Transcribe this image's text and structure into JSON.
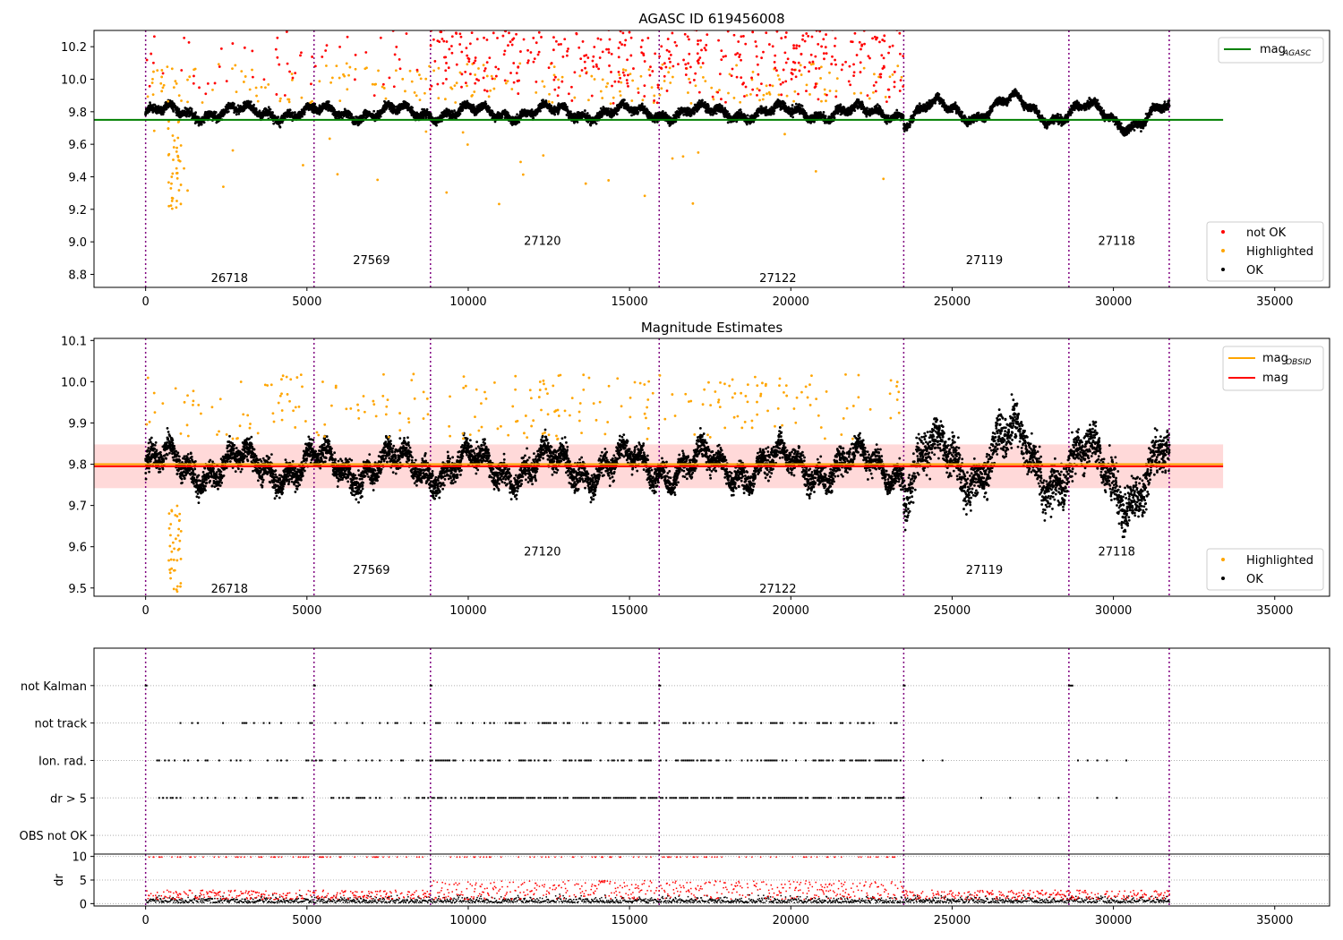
{
  "figure": {
    "width": 1500,
    "height": 1050
  },
  "colors": {
    "not_ok": "#ff0000",
    "highlighted": "#ffa500",
    "ok": "#000000",
    "mag_agasc": "#008000",
    "mag_obsid": "#ffa500",
    "mag": "#ff0000",
    "obsid_line": "#800080",
    "band": "#ffc0c0",
    "grid": "#b0b0b0"
  },
  "chart_data": [
    {
      "type": "scatter",
      "title": "AGASC ID 619456008",
      "xlim": [
        -1600,
        36700
      ],
      "ylim": [
        8.72,
        10.3
      ],
      "xticks": [
        0,
        5000,
        10000,
        15000,
        20000,
        25000,
        30000,
        35000
      ],
      "yticks": [
        8.8,
        9.0,
        9.2,
        9.4,
        9.6,
        9.8,
        10.0,
        10.2
      ],
      "ytick_format": 1,
      "mag_agasc": 9.75,
      "line_x": [
        -1600,
        33400
      ],
      "obsid_lines": [
        0,
        5220,
        8830,
        15920,
        23500,
        28620,
        31730
      ],
      "obsid_labels": [
        {
          "text": "26718",
          "x": 2600,
          "y": 8.78
        },
        {
          "text": "27569",
          "x": 7000,
          "y": 8.89
        },
        {
          "text": "27120",
          "x": 12300,
          "y": 9.01
        },
        {
          "text": "27122",
          "x": 19600,
          "y": 8.78
        },
        {
          "text": "27119",
          "x": 26000,
          "y": 8.89
        },
        {
          "text": "27118",
          "x": 30100,
          "y": 9.01
        }
      ],
      "legend_top": [
        {
          "label": "mag",
          "sub": "AGASC",
          "color": "#008000",
          "kind": "line"
        }
      ],
      "legend_bottom": [
        {
          "label": "not OK",
          "color": "#ff0000",
          "kind": "dot"
        },
        {
          "label": "Highlighted",
          "color": "#ffa500",
          "kind": "dot"
        },
        {
          "label": "OK",
          "color": "#000000",
          "kind": "dot"
        }
      ]
    },
    {
      "type": "scatter",
      "title": "Magnitude Estimates",
      "xlim": [
        -1600,
        36700
      ],
      "ylim": [
        9.48,
        10.105
      ],
      "xticks": [
        0,
        5000,
        10000,
        15000,
        20000,
        25000,
        30000,
        35000
      ],
      "yticks": [
        9.5,
        9.6,
        9.7,
        9.8,
        9.9,
        10.0,
        10.1
      ],
      "ytick_format": 1,
      "mag": 9.795,
      "mag_obsid": 9.8,
      "band": [
        9.742,
        9.848
      ],
      "line_x": [
        -1600,
        33400
      ],
      "obsid_lines": [
        0,
        5220,
        8830,
        15920,
        23500,
        28620,
        31730
      ],
      "obsid_labels": [
        {
          "text": "26718",
          "x": 2600,
          "y": 9.5
        },
        {
          "text": "27569",
          "x": 7000,
          "y": 9.545
        },
        {
          "text": "27120",
          "x": 12300,
          "y": 9.59
        },
        {
          "text": "27122",
          "x": 19600,
          "y": 9.5
        },
        {
          "text": "27119",
          "x": 26000,
          "y": 9.545
        },
        {
          "text": "27118",
          "x": 30100,
          "y": 9.59
        }
      ],
      "legend_top": [
        {
          "label": "mag",
          "sub": "OBSID",
          "color": "#ffa500",
          "kind": "line"
        },
        {
          "label": "mag",
          "sub": "",
          "color": "#ff0000",
          "kind": "line"
        }
      ],
      "legend_bottom": [
        {
          "label": "Highlighted",
          "color": "#ffa500",
          "kind": "dot"
        },
        {
          "label": "OK",
          "color": "#000000",
          "kind": "dot"
        }
      ]
    },
    {
      "type": "scatter",
      "title": "",
      "xlim": [
        -1600,
        36700
      ],
      "ylim": [
        -0.5,
        5.0
      ],
      "categories": [
        "not Kalman",
        "not track",
        "Ion. rad.",
        "dr > 5",
        "OBS not OK"
      ],
      "category_y": [
        4,
        3,
        2,
        1,
        0
      ],
      "obsid_lines": [
        0,
        5220,
        8830,
        15920,
        23500,
        28620,
        31730
      ]
    },
    {
      "type": "scatter",
      "title": "",
      "ylabel": "dr",
      "xlim": [
        -1600,
        36700
      ],
      "ylim": [
        -0.5,
        10.5
      ],
      "xticks": [
        0,
        5000,
        10000,
        15000,
        20000,
        25000,
        30000,
        35000
      ],
      "yticks": [
        0,
        5,
        10
      ],
      "ytick_format": 0,
      "obsid_lines": [
        0,
        5220,
        8830,
        15920,
        23500,
        28620,
        31730
      ]
    }
  ]
}
